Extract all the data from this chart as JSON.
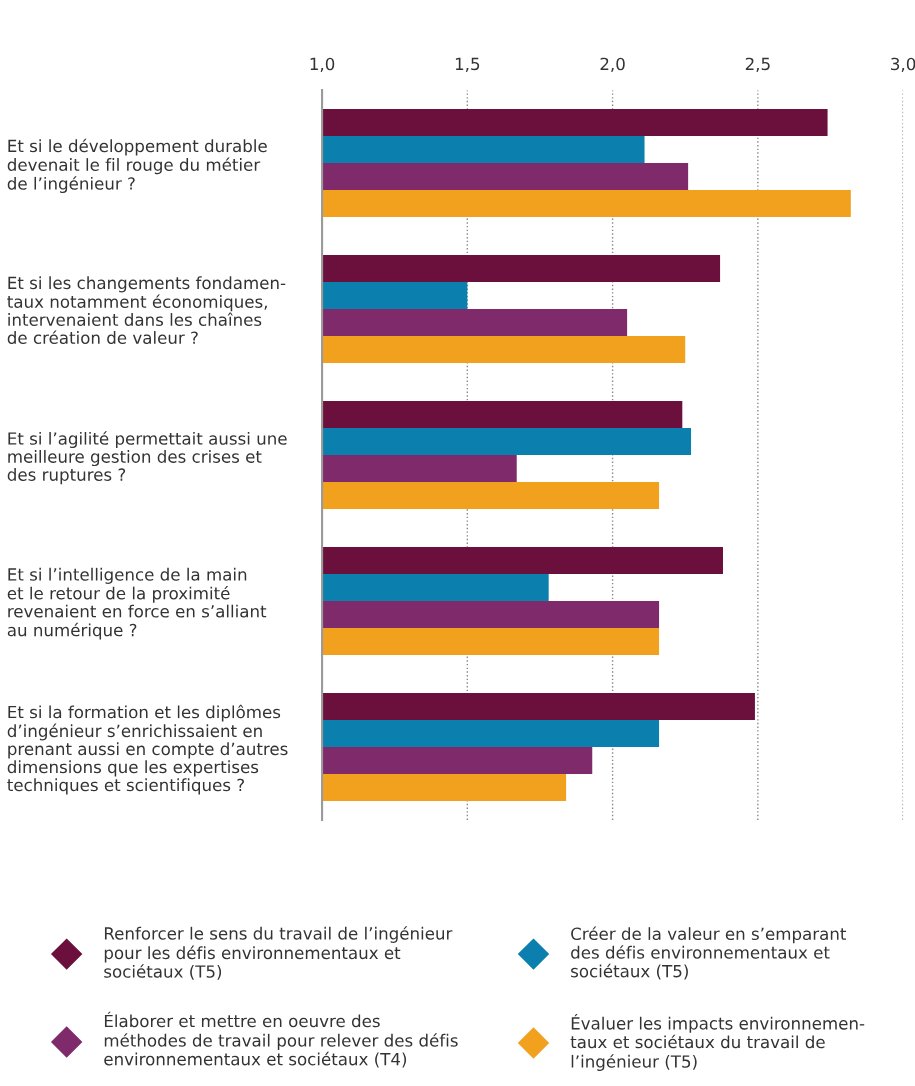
{
  "chart_data": {
    "type": "bar",
    "orientation": "horizontal",
    "categories": [
      "Et si le développement durable\ndevenait le fil rouge du métier\nde l’ingénieur ?",
      "Et si les changements fondamen-\ntaux notamment économiques,\nintervenaient dans les chaînes\nde création de valeur ?",
      "Et si l’agilité permettait aussi une\nmeilleure gestion des crises et\ndes ruptures ?",
      "Et si l’intelligence de la main\net le retour de la proximité\nrevenaient en force en s’alliant\nau numérique ?",
      "Et si la formation et les diplômes\nd’ingénieur s’enrichissaient en\nprenant aussi en compte d’autres\ndimensions que les expertises\ntechniques et scientifiques ?"
    ],
    "series": [
      {
        "name": "Renforcer le sens du travail de l’ingénieur\npour les défis environnementaux et\nsociétaux (T5)",
        "color": "#6b0f3c",
        "values": [
          2.74,
          2.37,
          2.24,
          2.38,
          2.49
        ]
      },
      {
        "name": "Créer de la valeur en s’emparant\ndes défis environnementaux et\nsociétaux (T5)",
        "color": "#0b7fae",
        "values": [
          2.11,
          1.5,
          2.27,
          1.78,
          2.16
        ]
      },
      {
        "name": "Élaborer et mettre en oeuvre des\nméthodes de travail pour relever des défis\nenvironnementaux et sociétaux (T4)",
        "color": "#7f2a6b",
        "values": [
          2.26,
          2.05,
          1.67,
          2.16,
          1.93
        ]
      },
      {
        "name": "Évaluer les impacts environnemen-\ntaux et sociétaux du travail de\nl’ingénieur (T5)",
        "color": "#f2a11f",
        "values": [
          2.82,
          2.25,
          2.16,
          2.16,
          1.84
        ]
      }
    ],
    "xlim": [
      1,
      3
    ],
    "xticks": [
      {
        "value": 1,
        "label": "1,0"
      },
      {
        "value": 1.5,
        "label": "1,5"
      },
      {
        "value": 2,
        "label": "2,0"
      },
      {
        "value": 2.5,
        "label": "2,5"
      },
      {
        "value": 3,
        "label": "3,0"
      }
    ],
    "grid": "x",
    "legend": "bottom",
    "marker": "diamond"
  }
}
